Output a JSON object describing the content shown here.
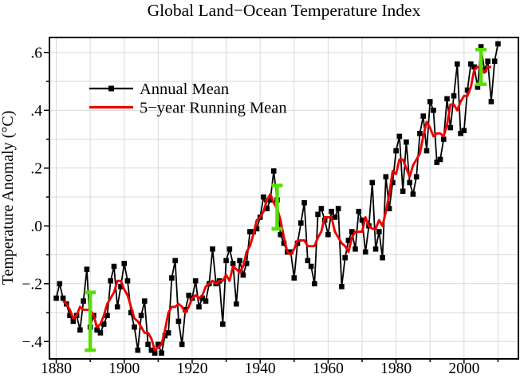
{
  "chart_data": {
    "type": "line",
    "title": "Global Land−Ocean Temperature Index",
    "xlabel": "",
    "ylabel": "Temperature Anomaly (°C)",
    "xlim": [
      1878,
      2016
    ],
    "ylim": [
      -0.46,
      0.652
    ],
    "grid": true,
    "x_gridline_step_years": 10,
    "y_gridline_step": 0.1,
    "x_tick_labels": [
      {
        "label": "1880",
        "value": 1880
      },
      {
        "label": "1900",
        "value": 1900
      },
      {
        "label": "1920",
        "value": 1920
      },
      {
        "label": "1940",
        "value": 1940
      },
      {
        "label": "1960",
        "value": 1960
      },
      {
        "label": "1980",
        "value": 1980
      },
      {
        "label": "2000",
        "value": 2000
      }
    ],
    "y_tick_labels": [
      {
        "label": ".6",
        "value": 0.6
      },
      {
        "label": ".4",
        "value": 0.4
      },
      {
        "label": ".2",
        "value": 0.2
      },
      {
        "label": ".0",
        "value": 0.0
      },
      {
        "label": "−.2",
        "value": -0.2
      },
      {
        "label": "−.4",
        "value": -0.4
      }
    ],
    "legend_position": "upper-left-inside",
    "series": [
      {
        "name": "Annual Mean",
        "type": "line-with-square-markers",
        "color": "#000000",
        "year_start": 1880,
        "values": [
          -0.25,
          -0.2,
          -0.25,
          -0.27,
          -0.31,
          -0.33,
          -0.31,
          -0.36,
          -0.26,
          -0.15,
          -0.35,
          -0.31,
          -0.36,
          -0.37,
          -0.34,
          -0.31,
          -0.19,
          -0.14,
          -0.28,
          -0.21,
          -0.13,
          -0.19,
          -0.3,
          -0.35,
          -0.43,
          -0.31,
          -0.26,
          -0.41,
          -0.43,
          -0.44,
          -0.41,
          -0.44,
          -0.38,
          -0.37,
          -0.18,
          -0.12,
          -0.33,
          -0.41,
          -0.29,
          -0.24,
          -0.25,
          -0.19,
          -0.28,
          -0.25,
          -0.26,
          -0.2,
          -0.08,
          -0.2,
          -0.19,
          -0.34,
          -0.12,
          -0.08,
          -0.13,
          -0.27,
          -0.12,
          -0.17,
          -0.13,
          -0.02,
          -0.02,
          -0.01,
          0.03,
          0.1,
          0.06,
          0.09,
          0.19,
          0.09,
          -0.03,
          -0.06,
          -0.09,
          -0.09,
          -0.18,
          -0.06,
          0.01,
          0.08,
          -0.12,
          -0.14,
          -0.2,
          0.04,
          0.06,
          0.02,
          -0.03,
          0.05,
          0.03,
          0.06,
          -0.21,
          -0.11,
          -0.05,
          -0.02,
          -0.08,
          0.05,
          0.02,
          -0.09,
          0.0,
          0.15,
          -0.08,
          -0.02,
          -0.11,
          0.17,
          0.06,
          0.15,
          0.26,
          0.31,
          0.12,
          0.29,
          0.15,
          0.11,
          0.17,
          0.32,
          0.38,
          0.26,
          0.43,
          0.4,
          0.22,
          0.23,
          0.3,
          0.44,
          0.34,
          0.45,
          0.56,
          0.32,
          0.33,
          0.47,
          0.56,
          0.55,
          0.48,
          0.62,
          0.54,
          0.57,
          0.43,
          0.57,
          0.63
        ]
      },
      {
        "name": "5−year Running Mean",
        "type": "line",
        "color": "#ee0000",
        "year_start": 1882,
        "values": [
          -0.26,
          -0.27,
          -0.29,
          -0.32,
          -0.31,
          -0.28,
          -0.29,
          -0.29,
          -0.29,
          -0.31,
          -0.35,
          -0.34,
          -0.31,
          -0.27,
          -0.25,
          -0.23,
          -0.19,
          -0.19,
          -0.22,
          -0.24,
          -0.28,
          -0.32,
          -0.33,
          -0.35,
          -0.37,
          -0.37,
          -0.39,
          -0.43,
          -0.42,
          -0.41,
          -0.36,
          -0.3,
          -0.28,
          -0.28,
          -0.27,
          -0.28,
          -0.3,
          -0.28,
          -0.25,
          -0.24,
          -0.25,
          -0.24,
          -0.21,
          -0.2,
          -0.19,
          -0.2,
          -0.19,
          -0.19,
          -0.17,
          -0.19,
          -0.14,
          -0.15,
          -0.16,
          -0.14,
          -0.09,
          -0.07,
          -0.03,
          0.02,
          0.03,
          0.05,
          0.09,
          0.11,
          0.08,
          0.06,
          0.02,
          -0.04,
          -0.09,
          -0.1,
          -0.08,
          -0.05,
          -0.05,
          -0.05,
          -0.07,
          -0.07,
          -0.07,
          -0.04,
          -0.02,
          0.03,
          0.03,
          0.03,
          -0.02,
          -0.04,
          -0.06,
          -0.07,
          -0.09,
          -0.04,
          -0.02,
          -0.02,
          -0.02,
          0.03,
          0.0,
          -0.01,
          -0.01,
          0.02,
          0.0,
          0.05,
          0.11,
          0.19,
          0.18,
          0.23,
          0.23,
          0.2,
          0.17,
          0.21,
          0.23,
          0.25,
          0.31,
          0.36,
          0.34,
          0.31,
          0.32,
          0.32,
          0.31,
          0.35,
          0.42,
          0.42,
          0.4,
          0.43,
          0.45,
          0.45,
          0.48,
          0.54,
          0.55,
          0.55,
          0.53,
          0.55,
          0.55
        ]
      }
    ],
    "error_bars": {
      "description": "green 2-sigma uncertainty bars",
      "color": "#55e000",
      "points": [
        {
          "year": 1890,
          "from": -0.43,
          "to": -0.23
        },
        {
          "year": 1945,
          "from": -0.01,
          "to": 0.14
        },
        {
          "year": 2005,
          "from": 0.49,
          "to": 0.61
        }
      ]
    }
  },
  "colors": {
    "annual": "#000000",
    "running_mean": "#ee0000",
    "error_bar": "#55e000",
    "grid": "#d9d9d9",
    "axis": "#000000",
    "background": "#ffffff"
  }
}
